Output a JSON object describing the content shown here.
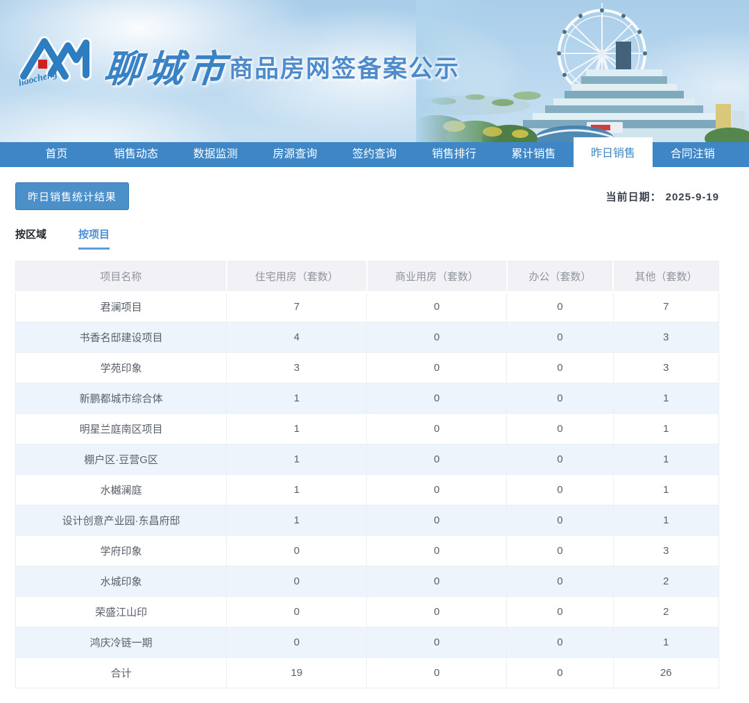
{
  "banner": {
    "logo_script": "liaocheng",
    "city_name": "聊城市",
    "title": "商品房网签备案公示"
  },
  "nav": {
    "items": [
      {
        "id": "home",
        "label": "首页"
      },
      {
        "id": "sales-trends",
        "label": "销售动态"
      },
      {
        "id": "data-monitor",
        "label": "数据监测"
      },
      {
        "id": "listing-query",
        "label": "房源查询"
      },
      {
        "id": "signing-query",
        "label": "签约查询"
      },
      {
        "id": "sales-ranking",
        "label": "销售排行"
      },
      {
        "id": "cumulative-sales",
        "label": "累计销售"
      },
      {
        "id": "yesterday-sales",
        "label": "昨日销售"
      },
      {
        "id": "contract-cancel",
        "label": "合同注销"
      }
    ],
    "active": "昨日销售"
  },
  "toolbar": {
    "result_button": "昨日销售统计结果",
    "date_label": "当前日期：",
    "date_value": "2025-9-19"
  },
  "view_tabs": {
    "items": [
      {
        "id": "by-district",
        "label": "按区域"
      },
      {
        "id": "by-project",
        "label": "按项目"
      }
    ],
    "active": "按项目"
  },
  "table": {
    "columns": [
      "项目名称",
      "住宅用房（套数）",
      "商业用房（套数）",
      "办公（套数）",
      "其他（套数）"
    ],
    "rows": [
      {
        "name": "君澜项目",
        "values": [
          7,
          0,
          0,
          7
        ]
      },
      {
        "name": "书香名邸建设项目",
        "values": [
          4,
          0,
          0,
          3
        ]
      },
      {
        "name": "学苑印象",
        "values": [
          3,
          0,
          0,
          3
        ]
      },
      {
        "name": "新鹏都城市综合体",
        "values": [
          1,
          0,
          0,
          1
        ]
      },
      {
        "name": "明星兰庭南区项目",
        "values": [
          1,
          0,
          0,
          1
        ]
      },
      {
        "name": "棚户区·豆营G区",
        "values": [
          1,
          0,
          0,
          1
        ]
      },
      {
        "name": "水樾澜庭",
        "values": [
          1,
          0,
          0,
          1
        ]
      },
      {
        "name": "设计创意产业园·东昌府邸",
        "values": [
          1,
          0,
          0,
          1
        ]
      },
      {
        "name": "学府印象",
        "values": [
          0,
          0,
          0,
          3
        ]
      },
      {
        "name": "水城印象",
        "values": [
          0,
          0,
          0,
          2
        ]
      },
      {
        "name": "荣盛江山印",
        "values": [
          0,
          0,
          0,
          2
        ]
      },
      {
        "name": "鸿庆冷链一期",
        "values": [
          0,
          0,
          0,
          1
        ]
      },
      {
        "name": "合计",
        "values": [
          19,
          0,
          0,
          26
        ]
      }
    ]
  },
  "colors": {
    "nav_blue": "#3e86c6",
    "button_blue": "#4b90c9",
    "button_border": "#3277b5",
    "tab_active_blue": "#4a90d9",
    "title_blue": "#4e8bcd",
    "header_bg": "#f1f1f6",
    "row_alt_bg": "#eef4fb",
    "logo_red": "#cc2222"
  }
}
